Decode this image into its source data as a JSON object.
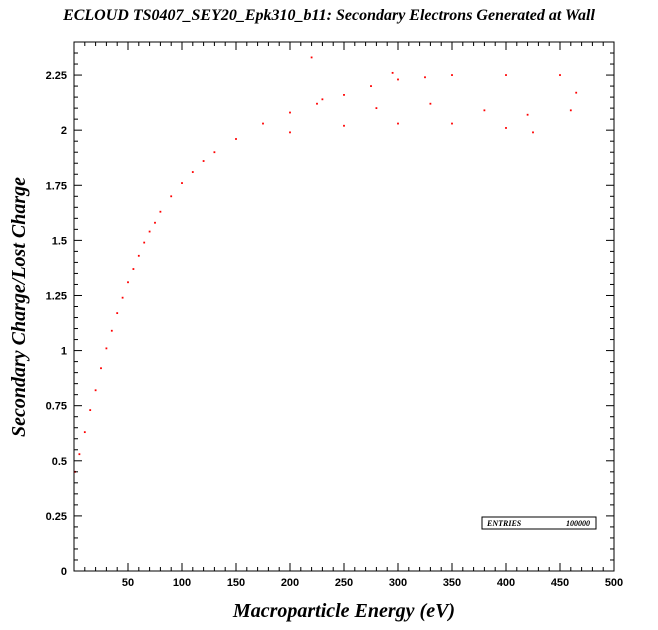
{
  "chart_data": {
    "type": "scatter",
    "title": "ECLOUD TS0407_SEY20_Epk310_b11: Secondary Electrons Generated at Wall",
    "xlabel": "Macroparticle Energy (eV)",
    "ylabel": "Secondary Charge/Lost Charge",
    "xlim": [
      0,
      500
    ],
    "ylim": [
      0,
      2.4
    ],
    "xticks": [
      "50",
      "100",
      "150",
      "200",
      "250",
      "300",
      "350",
      "400",
      "450",
      "500"
    ],
    "yticks": [
      "0",
      "0.25",
      "0.5",
      "0.75",
      "1",
      "1.25",
      "1.5",
      "1.75",
      "2",
      "2.25"
    ],
    "marker_color": "#ff0000",
    "grid": false,
    "stats_box": {
      "label": "ENTRIES",
      "value": "100000",
      "placement": "bottom-right"
    },
    "series": [
      {
        "points": [
          [
            1,
            0.45
          ],
          [
            5,
            0.53
          ],
          [
            10,
            0.63
          ],
          [
            15,
            0.73
          ],
          [
            20,
            0.82
          ],
          [
            25,
            0.92
          ],
          [
            30,
            1.01
          ],
          [
            35,
            1.09
          ],
          [
            40,
            1.17
          ],
          [
            45,
            1.24
          ],
          [
            50,
            1.31
          ],
          [
            55,
            1.37
          ],
          [
            60,
            1.43
          ],
          [
            65,
            1.49
          ],
          [
            70,
            1.54
          ],
          [
            75,
            1.58
          ],
          [
            80,
            1.63
          ],
          [
            90,
            1.7
          ],
          [
            100,
            1.76
          ],
          [
            110,
            1.81
          ],
          [
            120,
            1.86
          ],
          [
            130,
            1.9
          ],
          [
            150,
            1.96
          ],
          [
            175,
            2.03
          ],
          [
            200,
            2.08
          ],
          [
            225,
            2.12
          ],
          [
            250,
            2.16
          ],
          [
            275,
            2.2
          ],
          [
            300,
            2.23
          ],
          [
            325,
            2.24
          ],
          [
            350,
            2.25
          ],
          [
            400,
            2.25
          ],
          [
            450,
            2.25
          ],
          [
            200,
            1.99
          ],
          [
            250,
            2.02
          ],
          [
            300,
            2.03
          ],
          [
            350,
            2.03
          ],
          [
            400,
            2.01
          ],
          [
            425,
            1.99
          ],
          [
            460,
            2.09
          ],
          [
            465,
            2.17
          ],
          [
            220,
            2.33
          ],
          [
            295,
            2.26
          ],
          [
            230,
            2.14
          ],
          [
            280,
            2.1
          ],
          [
            330,
            2.12
          ],
          [
            380,
            2.09
          ],
          [
            420,
            2.07
          ]
        ]
      }
    ]
  }
}
